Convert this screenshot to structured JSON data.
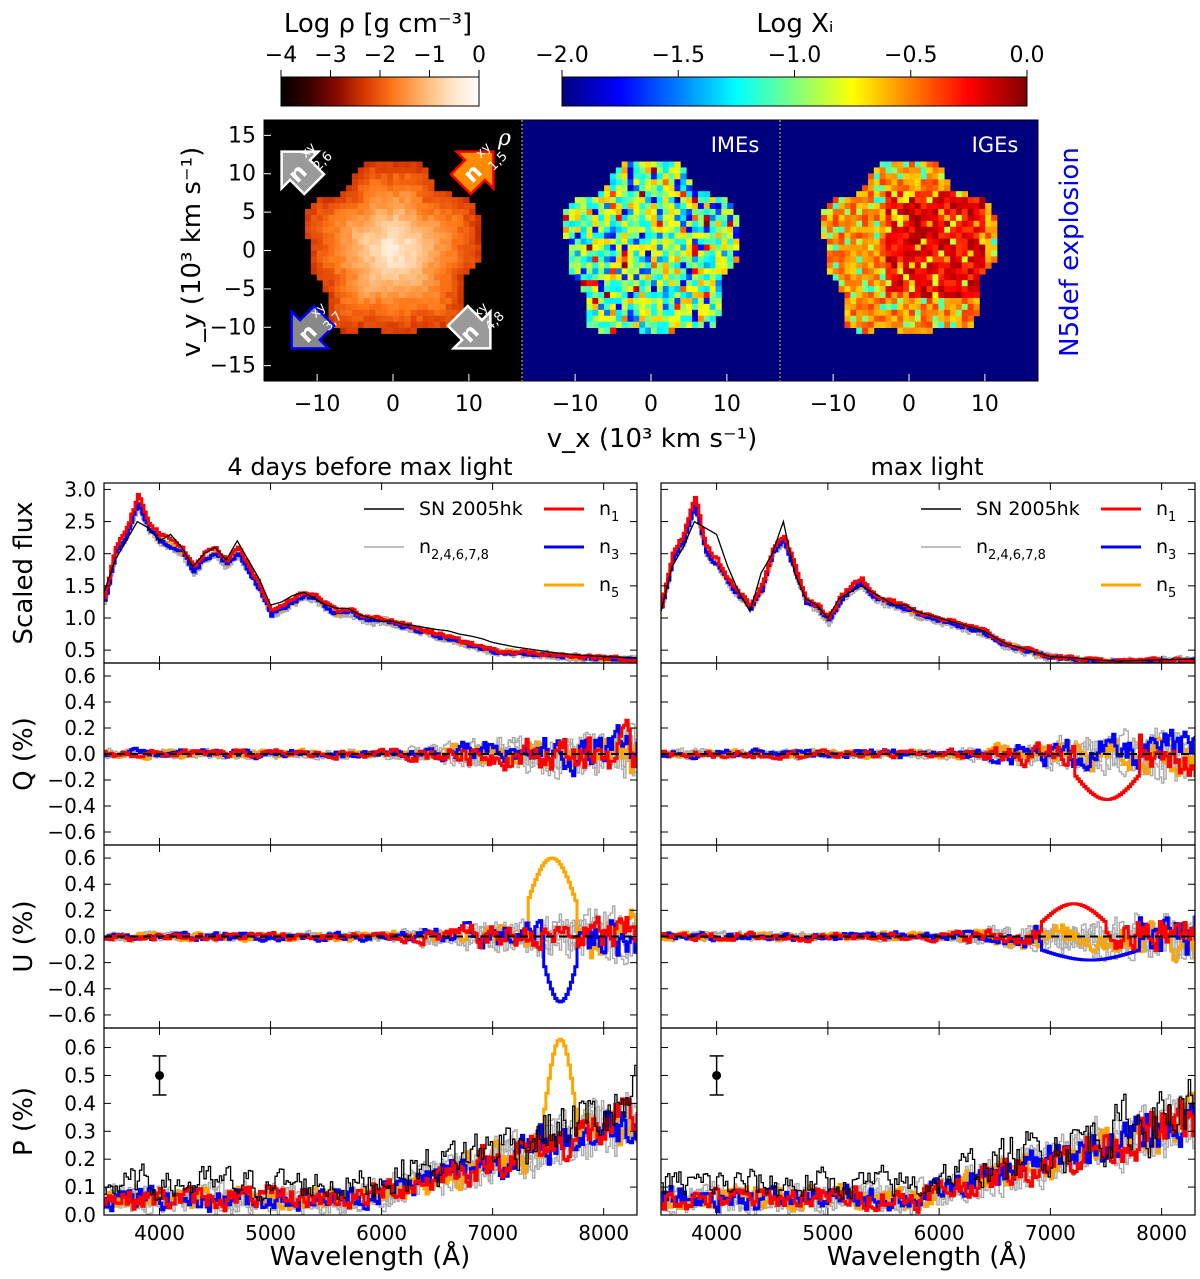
{
  "chart_data": [
    {
      "type": "heatmap",
      "panel": "density map",
      "colorbar": {
        "label": "Log ρ [g cm⁻³]",
        "range": [
          -4,
          0
        ],
        "ticks": [
          -4,
          -3,
          -2,
          -1,
          0
        ],
        "tick_labels": [
          "−4",
          "−3",
          "−2",
          "−1",
          "0"
        ],
        "colors": [
          "#000000",
          "#3a0000",
          "#8b0a00",
          "#d93b00",
          "#ff7a1a",
          "#ffb36b",
          "#ffe3c4",
          "#ffffff"
        ]
      },
      "corner_label": "ρ",
      "arrow_labels": [
        {
          "label": "n",
          "sub": "2,6",
          "sup": "xy",
          "color": "#9a9a9a"
        },
        {
          "label": "n",
          "sub": "1,5",
          "sup": "xy",
          "color": "#ff8c00"
        },
        {
          "label": "n",
          "sub": "3,7",
          "sup": "xy",
          "color": "#8a8a8a"
        },
        {
          "label": "n",
          "sub": "4,8",
          "sup": "xy",
          "color": "#9a9a9a"
        }
      ],
      "ylabel": "v_y (10³ km s⁻¹)",
      "xticks": [
        -10,
        0,
        10
      ],
      "yticks": [
        15,
        10,
        5,
        0,
        -5,
        -10,
        -15
      ],
      "tick_labels_x": [
        "−10",
        "0",
        "10"
      ],
      "tick_labels_y": [
        "15",
        "10",
        "5",
        "0",
        "−5",
        "−10",
        "−15"
      ],
      "xlim": [
        -17,
        17
      ],
      "ylim": [
        -17,
        17
      ]
    },
    {
      "type": "heatmap",
      "panel": "IMEs",
      "panel_label": "IMEs",
      "colorbar": {
        "label": "Log Xᵢ",
        "range": [
          -2.0,
          0.0
        ],
        "ticks": [
          -2.0,
          -1.5,
          -1.0,
          -0.5,
          0.0
        ],
        "tick_labels": [
          "−2.0",
          "−1.5",
          "−1.0",
          "−0.5",
          "0.0"
        ],
        "colors": [
          "#00007f",
          "#0000ff",
          "#007fff",
          "#00ffff",
          "#7fff7f",
          "#ffff00",
          "#ff7f00",
          "#ff0000",
          "#7f0000"
        ]
      },
      "xticks": [
        -10,
        0,
        10
      ],
      "tick_labels_x": [
        "−10",
        "0",
        "10"
      ]
    },
    {
      "type": "heatmap",
      "panel": "IGEs",
      "panel_label": "IGEs",
      "xticks": [
        -10,
        0,
        10
      ],
      "tick_labels_x": [
        "−10",
        "0",
        "10"
      ],
      "side_label": "N5def explosion",
      "xlabel": "v_x (10³ km s⁻¹)"
    },
    {
      "type": "line",
      "column_titles": [
        "4 days before max light",
        "max light"
      ],
      "xlabel": "Wavelength (Å)",
      "xlim": [
        3500,
        8300
      ],
      "xticks": [
        4000,
        5000,
        6000,
        7000,
        8000
      ],
      "xtick_labels": [
        "4000",
        "5000",
        "6000",
        "7000",
        "8000"
      ],
      "legend": {
        "obs": "SN 2005hk",
        "grey": "n",
        "grey_sub": "2,4,6,7,8",
        "n1": "n",
        "n1_sub": "1",
        "n3": "n",
        "n3_sub": "3",
        "n5": "n",
        "n5_sub": "5"
      },
      "colors": {
        "obs": "#000000",
        "grey": "#aaaaaa",
        "n1": "#ff0000",
        "n3": "#0000ff",
        "n5": "#ffa500"
      },
      "rows": [
        {
          "ylabel": "Scaled flux",
          "ylim": [
            0.3,
            3.1
          ],
          "yticks": [
            0.5,
            1.0,
            1.5,
            2.0,
            2.5,
            3.0
          ],
          "ytick_labels": [
            "0.5",
            "1.0",
            "1.5",
            "2.0",
            "2.5",
            "3.0"
          ]
        },
        {
          "ylabel": "Q (%)",
          "ylim": [
            -0.7,
            0.7
          ],
          "yticks": [
            -0.6,
            -0.4,
            -0.2,
            0.0,
            0.2,
            0.4,
            0.6
          ],
          "ytick_labels": [
            "−0.6",
            "−0.4",
            "−0.2",
            "0.0",
            "0.2",
            "0.4",
            "0.6"
          ]
        },
        {
          "ylabel": "U (%)",
          "ylim": [
            -0.7,
            0.7
          ],
          "yticks": [
            -0.6,
            -0.4,
            -0.2,
            0.0,
            0.2,
            0.4,
            0.6
          ],
          "ytick_labels": [
            "−0.6",
            "−0.4",
            "−0.2",
            "0.0",
            "0.2",
            "0.4",
            "0.6"
          ]
        },
        {
          "ylabel": "P (%)",
          "ylim": [
            0.0,
            0.67
          ],
          "yticks": [
            0.0,
            0.1,
            0.2,
            0.3,
            0.4,
            0.5,
            0.6
          ],
          "ytick_labels": [
            "0.0",
            "0.1",
            "0.2",
            "0.3",
            "0.4",
            "0.5",
            "0.6"
          ]
        }
      ],
      "flux_pre": {
        "wave": [
          3500,
          3600,
          3700,
          3800,
          3900,
          4000,
          4100,
          4200,
          4300,
          4400,
          4500,
          4600,
          4700,
          4800,
          4900,
          5000,
          5100,
          5200,
          5300,
          5400,
          5500,
          5600,
          5700,
          5800,
          5900,
          6000,
          6100,
          6200,
          6300,
          6400,
          6500,
          6600,
          6700,
          6800,
          6900,
          7000,
          7200,
          7400,
          7600,
          7800,
          8000,
          8300
        ],
        "model": [
          1.3,
          2.1,
          2.4,
          2.9,
          2.5,
          2.3,
          2.2,
          2.1,
          1.8,
          2.0,
          2.1,
          1.9,
          2.1,
          1.8,
          1.5,
          1.1,
          1.2,
          1.3,
          1.4,
          1.35,
          1.2,
          1.1,
          1.15,
          1.05,
          1.0,
          1.0,
          0.95,
          0.9,
          0.85,
          0.8,
          0.75,
          0.7,
          0.65,
          0.6,
          0.55,
          0.5,
          0.48,
          0.45,
          0.42,
          0.4,
          0.38,
          0.36
        ],
        "obs": [
          1.4,
          1.9,
          2.2,
          2.5,
          2.4,
          2.2,
          2.3,
          2.1,
          1.8,
          2.0,
          2.1,
          1.9,
          2.2,
          1.9,
          1.6,
          1.2,
          1.25,
          1.35,
          1.4,
          1.3,
          1.2,
          1.15,
          1.15,
          1.05,
          1.0,
          0.95,
          0.95,
          0.9,
          0.88,
          0.85,
          0.82,
          0.8,
          0.75,
          0.72,
          0.68,
          0.62,
          0.55,
          0.5,
          0.45,
          0.42,
          0.4,
          0.38
        ]
      },
      "flux_max": {
        "wave": [
          3500,
          3600,
          3700,
          3800,
          3900,
          4000,
          4100,
          4200,
          4300,
          4400,
          4500,
          4600,
          4700,
          4800,
          4900,
          5000,
          5100,
          5200,
          5300,
          5400,
          5500,
          5600,
          5700,
          5800,
          5900,
          6000,
          6100,
          6200,
          6300,
          6400,
          6500,
          6600,
          6700,
          6800,
          6900,
          7000,
          7200,
          7400,
          7600,
          7800,
          8000,
          8300
        ],
        "model": [
          1.2,
          2.0,
          2.3,
          2.9,
          2.1,
          1.9,
          1.6,
          1.4,
          1.2,
          1.5,
          2.1,
          2.3,
          1.8,
          1.3,
          1.2,
          1.0,
          1.3,
          1.5,
          1.6,
          1.4,
          1.3,
          1.25,
          1.2,
          1.1,
          1.05,
          1.0,
          0.95,
          0.9,
          0.85,
          0.8,
          0.7,
          0.6,
          0.55,
          0.5,
          0.45,
          0.4,
          0.38,
          0.35,
          0.33,
          0.34,
          0.35,
          0.36
        ],
        "obs": [
          1.1,
          1.8,
          2.1,
          2.5,
          2.4,
          2.3,
          1.8,
          1.4,
          1.1,
          1.7,
          2.0,
          2.5,
          1.7,
          1.3,
          1.2,
          1.0,
          1.3,
          1.4,
          1.5,
          1.4,
          1.3,
          1.2,
          1.2,
          1.1,
          1.05,
          1.0,
          0.95,
          0.9,
          0.85,
          0.8,
          0.7,
          0.6,
          0.55,
          0.5,
          0.45,
          0.4,
          0.38,
          0.35,
          0.33,
          0.34,
          0.35,
          0.36
        ]
      },
      "error_bar": {
        "wave": 4000,
        "value": 0.5,
        "err": 0.07
      }
    }
  ]
}
